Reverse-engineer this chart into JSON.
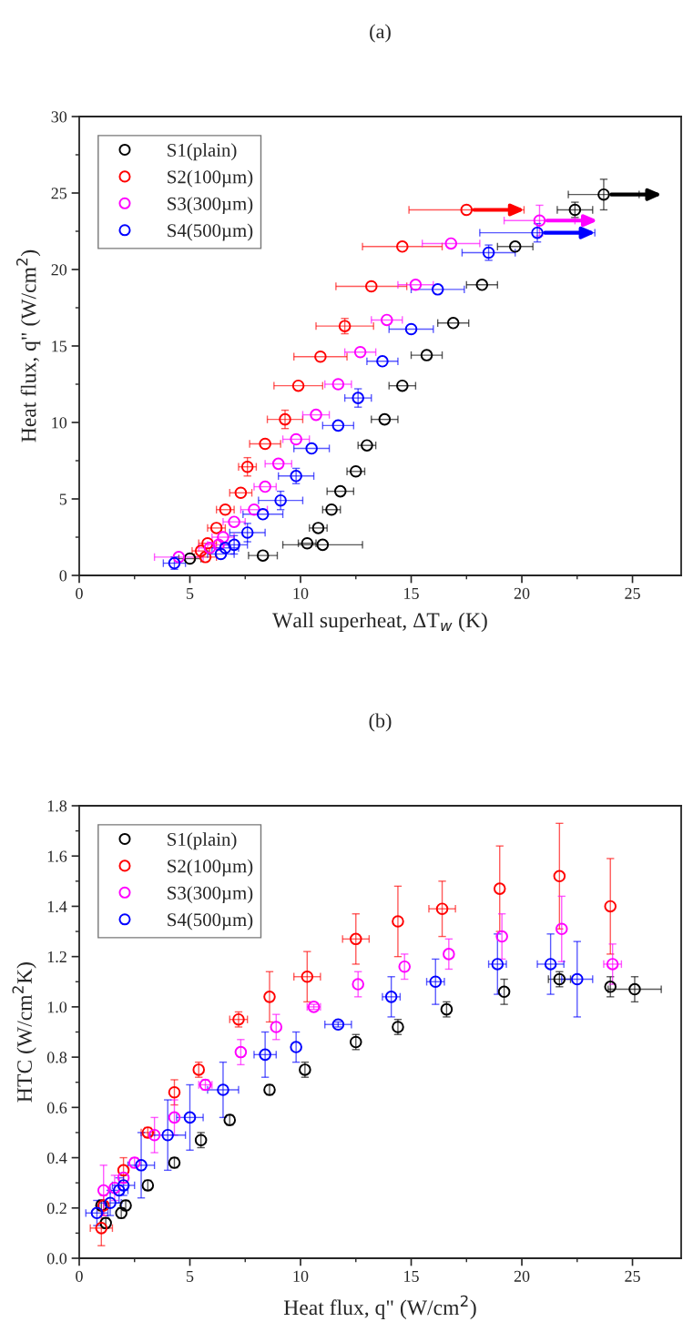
{
  "chart_data": [
    {
      "type": "scatter",
      "title": "(a)",
      "xlabel": "Wall superheat, ΔT$_{w}$ (K)",
      "ylabel": "Heat flux, q\" (W/cm$^{2}$)",
      "xlim": [
        0,
        27.2
      ],
      "xticks": [
        0,
        5,
        10,
        15,
        20,
        25
      ],
      "ylim": [
        0,
        30
      ],
      "yticks": [
        0,
        5,
        10,
        15,
        20,
        25,
        30
      ],
      "legend": "top left",
      "marker": "circle",
      "grid": false,
      "series": [
        {
          "name": "S1(plain)",
          "color": "#000000",
          "x": [
            5.0,
            8.3,
            11.0,
            10.3,
            10.8,
            11.4,
            11.8,
            12.5,
            13.0,
            13.8,
            14.6,
            15.7,
            16.9,
            18.2,
            19.7,
            22.4,
            23.7
          ],
          "values": [
            1.1,
            1.3,
            2.0,
            2.1,
            3.1,
            4.3,
            5.5,
            6.8,
            8.5,
            10.2,
            12.4,
            14.4,
            16.5,
            19.0,
            21.5,
            23.9,
            24.9
          ],
          "xerrors": [
            0.5,
            0.65,
            1.8,
            0.4,
            0.4,
            0.4,
            0.6,
            0.4,
            0.4,
            0.6,
            0.6,
            0.7,
            0.7,
            0.7,
            0.8,
            0.8,
            1.6
          ],
          "errors": [
            null,
            null,
            null,
            null,
            null,
            null,
            null,
            null,
            null,
            null,
            null,
            null,
            null,
            null,
            null,
            0.5,
            1.0
          ]
        },
        {
          "name": "S2(100µm)",
          "color": "#ff0000",
          "x": [
            5.7,
            5.5,
            5.8,
            6.2,
            6.6,
            7.3,
            7.6,
            8.4,
            9.3,
            9.9,
            10.9,
            12.0,
            13.2,
            14.6,
            17.5
          ],
          "values": [
            1.2,
            1.6,
            2.1,
            3.1,
            4.3,
            5.4,
            7.1,
            8.6,
            10.2,
            12.4,
            14.3,
            16.3,
            18.9,
            21.5,
            23.9
          ],
          "xerrors": [
            0.5,
            0.4,
            0.4,
            0.4,
            0.4,
            0.5,
            0.4,
            0.7,
            0.8,
            1.1,
            1.2,
            1.3,
            1.6,
            1.8,
            2.6
          ],
          "errors": [
            null,
            null,
            null,
            null,
            null,
            null,
            0.6,
            null,
            0.6,
            null,
            null,
            0.5,
            null,
            null,
            null
          ]
        },
        {
          "name": "S3(300µm)",
          "color": "#ff00ff",
          "x": [
            4.5,
            5.9,
            6.3,
            6.5,
            7.0,
            7.9,
            8.4,
            9.0,
            9.8,
            10.7,
            11.7,
            12.7,
            13.9,
            15.2,
            16.8,
            20.8
          ],
          "values": [
            1.2,
            1.8,
            2.0,
            2.5,
            3.5,
            4.3,
            5.8,
            7.3,
            8.9,
            10.5,
            12.5,
            14.6,
            16.7,
            19.0,
            21.7,
            23.2
          ],
          "xerrors": [
            1.1,
            0.5,
            0.5,
            0.5,
            0.5,
            0.6,
            0.5,
            0.6,
            0.6,
            0.6,
            0.6,
            0.7,
            0.7,
            0.8,
            1.3,
            1.6
          ],
          "errors": [
            null,
            null,
            null,
            null,
            null,
            null,
            null,
            null,
            null,
            null,
            null,
            null,
            null,
            null,
            null,
            1.0
          ]
        },
        {
          "name": "S4(500µm)",
          "color": "#0000ff",
          "x": [
            4.3,
            6.4,
            6.6,
            7.0,
            7.6,
            8.3,
            9.1,
            9.8,
            10.5,
            11.7,
            12.6,
            13.7,
            15.0,
            16.2,
            18.5,
            20.7
          ],
          "values": [
            0.8,
            1.4,
            1.8,
            2.0,
            2.8,
            4.0,
            4.9,
            6.5,
            8.3,
            9.8,
            11.6,
            14.0,
            16.1,
            18.7,
            21.1,
            22.4
          ],
          "xerrors": [
            0.5,
            0.6,
            0.6,
            0.6,
            0.8,
            0.9,
            1.0,
            0.8,
            0.8,
            0.7,
            0.6,
            0.7,
            1.0,
            1.2,
            1.2,
            2.6
          ],
          "errors": [
            0.4,
            null,
            null,
            0.6,
            0.6,
            null,
            0.6,
            0.5,
            null,
            null,
            0.6,
            null,
            null,
            null,
            0.5,
            0.6
          ]
        }
      ]
    },
    {
      "type": "scatter",
      "title": "(b)",
      "xlabel": "Heat flux, q\" (W/cm$^{2}$)",
      "ylabel": "HTC (W/cm$^{2}$K)",
      "xlim": [
        0,
        27.2
      ],
      "xticks": [
        0,
        5,
        10,
        15,
        20,
        25
      ],
      "ylim": [
        0,
        1.8
      ],
      "yticks": [
        {
          "value": 0,
          "label": "0.0"
        },
        0.2,
        0.4,
        0.6,
        0.8,
        {
          "value": 1,
          "label": "1.0"
        },
        1.2,
        1.4,
        1.6,
        1.8
      ],
      "legend": "top left",
      "marker": "circle",
      "grid": false,
      "series": [
        {
          "name": "S1(plain)",
          "color": "#000000",
          "x": [
            1.2,
            1.0,
            1.9,
            2.1,
            3.1,
            4.3,
            5.5,
            6.8,
            8.6,
            10.2,
            12.5,
            14.4,
            16.6,
            19.2,
            21.7,
            24.0,
            25.1
          ],
          "values": [
            0.14,
            0.21,
            0.18,
            0.21,
            0.29,
            0.38,
            0.47,
            0.55,
            0.67,
            0.75,
            0.86,
            0.92,
            0.99,
            1.06,
            1.11,
            1.08,
            1.07
          ],
          "errors": [
            0.02,
            0.02,
            0.02,
            0.02,
            0.02,
            0.02,
            0.03,
            0.02,
            0.02,
            0.03,
            0.03,
            0.03,
            0.03,
            0.05,
            0.03,
            0.04,
            0.05
          ],
          "xerrors": [
            null,
            null,
            null,
            null,
            null,
            null,
            null,
            null,
            null,
            null,
            null,
            null,
            null,
            null,
            0.5,
            null,
            1.2
          ]
        },
        {
          "name": "S2(100µm)",
          "color": "#ff0000",
          "x": [
            1.0,
            1.1,
            2.0,
            3.1,
            4.3,
            5.4,
            7.2,
            8.6,
            10.3,
            12.5,
            14.4,
            16.4,
            19.0,
            21.7,
            24.0
          ],
          "values": [
            0.12,
            0.21,
            0.35,
            0.5,
            0.66,
            0.75,
            0.95,
            1.04,
            1.12,
            1.27,
            1.34,
            1.39,
            1.47,
            1.52,
            1.4
          ],
          "errors": [
            0.07,
            0.04,
            0.05,
            0.02,
            0.05,
            0.03,
            0.03,
            0.1,
            0.1,
            0.1,
            0.14,
            0.11,
            0.17,
            0.21,
            0.19
          ],
          "xerrors": [
            0.5,
            null,
            null,
            0.3,
            null,
            null,
            0.4,
            null,
            0.6,
            0.6,
            null,
            0.6,
            null,
            null,
            null
          ]
        },
        {
          "name": "S3(300µm)",
          "color": "#ff00ff",
          "x": [
            1.1,
            1.6,
            2.0,
            2.5,
            3.4,
            4.3,
            5.7,
            7.3,
            8.9,
            10.6,
            12.6,
            14.7,
            16.7,
            19.1,
            21.8,
            24.1
          ],
          "values": [
            0.27,
            0.28,
            0.32,
            0.38,
            0.49,
            0.56,
            0.69,
            0.82,
            0.92,
            1.0,
            1.09,
            1.16,
            1.21,
            1.28,
            1.31,
            1.17
          ],
          "errors": [
            0.1,
            0.05,
            null,
            0.02,
            0.07,
            0.07,
            0.02,
            0.05,
            0.05,
            0.01,
            0.05,
            0.05,
            0.06,
            0.09,
            0.13,
            0.08
          ],
          "xerrors": [
            null,
            null,
            null,
            null,
            null,
            null,
            0.3,
            null,
            null,
            0.3,
            null,
            null,
            null,
            null,
            null,
            0.4
          ]
        },
        {
          "name": "S4(500µm)",
          "color": "#0000ff",
          "x": [
            0.8,
            1.4,
            1.8,
            2.0,
            2.8,
            4.0,
            5.0,
            6.5,
            8.4,
            9.8,
            11.7,
            14.1,
            16.1,
            18.9,
            21.3,
            22.5
          ],
          "values": [
            0.18,
            0.22,
            0.27,
            0.29,
            0.37,
            0.49,
            0.56,
            0.67,
            0.81,
            0.84,
            0.93,
            1.04,
            1.1,
            1.17,
            1.17,
            1.11
          ],
          "errors": [
            0.05,
            0.05,
            0.05,
            0.04,
            0.13,
            0.14,
            0.13,
            0.11,
            0.09,
            0.06,
            0.01,
            0.08,
            0.09,
            0.12,
            0.12,
            0.15
          ],
          "xerrors": [
            0.5,
            0.5,
            0.4,
            0.5,
            0.6,
            0.8,
            0.6,
            0.7,
            0.5,
            null,
            0.6,
            0.4,
            0.4,
            0.4,
            0.6,
            0.7
          ]
        }
      ]
    }
  ]
}
